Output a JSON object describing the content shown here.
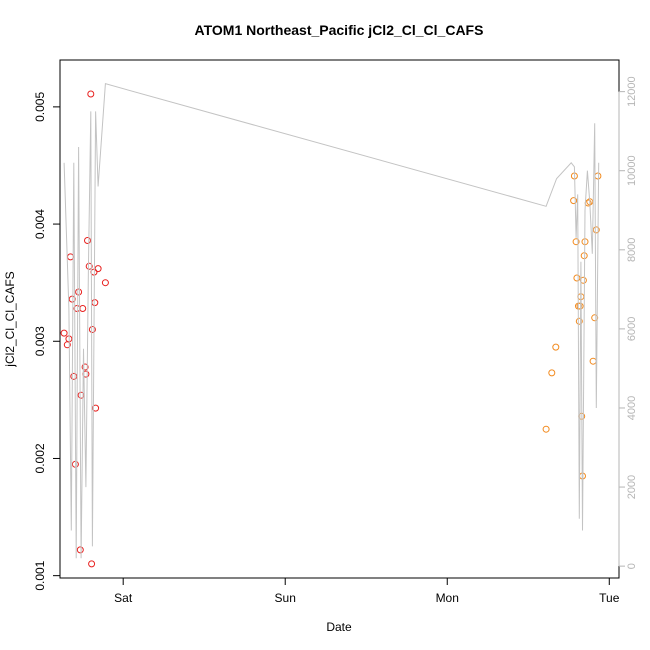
{
  "chart_data": {
    "type": "scatter",
    "title": "ATOM1 Northeast_Pacific jCl2_Cl_Cl_CAFS",
    "xlabel": "Date",
    "ylabel": "jCl2_Cl_Cl_CAFS",
    "x_units": "days",
    "xlim": [
      -0.39,
      3.06
    ],
    "x_ticks": [
      {
        "value": 0,
        "label": "Sat"
      },
      {
        "value": 1,
        "label": "Sun"
      },
      {
        "value": 2,
        "label": "Mon"
      },
      {
        "value": 3,
        "label": "Tue"
      }
    ],
    "ylim": [
      0.00098,
      0.0054
    ],
    "y_ticks": [
      {
        "value": 0.001,
        "label": "0.001"
      },
      {
        "value": 0.002,
        "label": "0.002"
      },
      {
        "value": 0.003,
        "label": "0.003"
      },
      {
        "value": 0.004,
        "label": "0.004"
      },
      {
        "value": 0.005,
        "label": "0.005"
      }
    ],
    "y2lim": [
      -300,
      12800
    ],
    "y2_ticks": [
      {
        "value": 0,
        "label": "0"
      },
      {
        "value": 2000,
        "label": "2000"
      },
      {
        "value": 4000,
        "label": "4000"
      },
      {
        "value": 6000,
        "label": "6000"
      },
      {
        "value": 8000,
        "label": "8000"
      },
      {
        "value": 10000,
        "label": "10000"
      },
      {
        "value": 12000,
        "label": "12000"
      }
    ],
    "grid": false,
    "series": [
      {
        "color": "#e8201e",
        "marker": "open-circle",
        "axis": "left",
        "points": [
          [
            -0.365,
            0.00307
          ],
          [
            -0.345,
            0.00297
          ],
          [
            -0.335,
            0.00302
          ],
          [
            -0.325,
            0.00372
          ],
          [
            -0.315,
            0.00336
          ],
          [
            -0.305,
            0.0027
          ],
          [
            -0.295,
            0.00195
          ],
          [
            -0.285,
            0.00328
          ],
          [
            -0.275,
            0.00342
          ],
          [
            -0.265,
            0.00122
          ],
          [
            -0.26,
            0.00254
          ],
          [
            -0.25,
            0.00328
          ],
          [
            -0.235,
            0.00278
          ],
          [
            -0.23,
            0.00272
          ],
          [
            -0.22,
            0.00386
          ],
          [
            -0.21,
            0.00364
          ],
          [
            -0.2,
            0.00511
          ],
          [
            -0.195,
            0.0011
          ],
          [
            -0.19,
            0.0031
          ],
          [
            -0.18,
            0.00359
          ],
          [
            -0.175,
            0.00333
          ],
          [
            -0.17,
            0.00243
          ],
          [
            -0.155,
            0.00362
          ],
          [
            -0.11,
            0.0035
          ]
        ]
      },
      {
        "color": "#f28a1d",
        "marker": "open-circle",
        "axis": "left",
        "points": [
          [
            2.61,
            0.00225
          ],
          [
            2.645,
            0.00273
          ],
          [
            2.67,
            0.00295
          ],
          [
            2.78,
            0.0042
          ],
          [
            2.785,
            0.00441
          ],
          [
            2.795,
            0.00385
          ],
          [
            2.8,
            0.00354
          ],
          [
            2.81,
            0.0033
          ],
          [
            2.815,
            0.00317
          ],
          [
            2.82,
            0.0033
          ],
          [
            2.825,
            0.00338
          ],
          [
            2.83,
            0.00236
          ],
          [
            2.835,
            0.00185
          ],
          [
            2.84,
            0.00352
          ],
          [
            2.845,
            0.00373
          ],
          [
            2.85,
            0.00385
          ],
          [
            2.87,
            0.00418
          ],
          [
            2.88,
            0.00419
          ],
          [
            2.9,
            0.00283
          ],
          [
            2.91,
            0.0032
          ],
          [
            2.92,
            0.00395
          ],
          [
            2.93,
            0.00441
          ]
        ]
      },
      {
        "color": "#c3c3c3",
        "style": "line",
        "axis": "right",
        "points": [
          [
            -0.365,
            10200
          ],
          [
            -0.335,
            6500
          ],
          [
            -0.32,
            900
          ],
          [
            -0.305,
            10200
          ],
          [
            -0.29,
            200
          ],
          [
            -0.275,
            10600
          ],
          [
            -0.26,
            200
          ],
          [
            -0.245,
            5500
          ],
          [
            -0.23,
            2000
          ],
          [
            -0.215,
            7500
          ],
          [
            -0.2,
            11500
          ],
          [
            -0.19,
            500
          ],
          [
            -0.17,
            11500
          ],
          [
            -0.155,
            9600
          ],
          [
            -0.11,
            12200
          ],
          [
            2.61,
            9100
          ],
          [
            2.675,
            9800
          ],
          [
            2.765,
            10200
          ],
          [
            2.785,
            10100
          ],
          [
            2.795,
            8300
          ],
          [
            2.805,
            9400
          ],
          [
            2.815,
            1200
          ],
          [
            2.825,
            7700
          ],
          [
            2.835,
            900
          ],
          [
            2.85,
            9000
          ],
          [
            2.865,
            10000
          ],
          [
            2.88,
            9200
          ],
          [
            2.895,
            7900
          ],
          [
            2.91,
            11200
          ],
          [
            2.92,
            4000
          ],
          [
            2.935,
            10200
          ]
        ]
      }
    ]
  }
}
